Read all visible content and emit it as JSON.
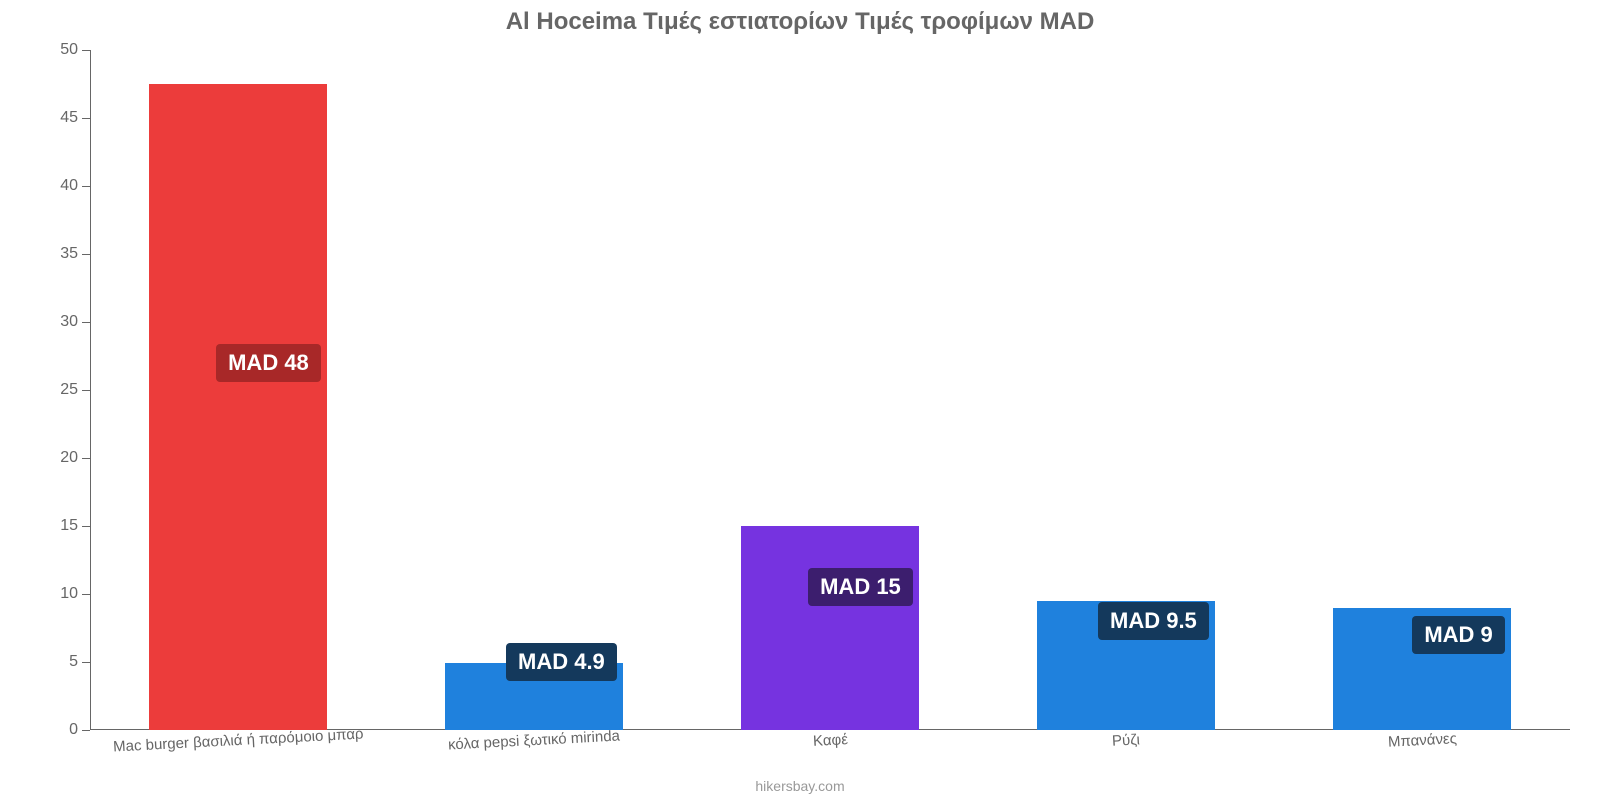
{
  "chart": {
    "type": "bar",
    "title": "Al Hoceima Τιμές εστιατορίων Τιμές τροφίμων MAD",
    "title_color": "#666666",
    "title_fontsize": 24,
    "background_color": "#ffffff",
    "axis_color": "#666666",
    "axis_label_fontsize": 16,
    "x_label_fontsize": 15,
    "x_label_rotation_deg": -3,
    "ylim": [
      0,
      50
    ],
    "ytick_step": 5,
    "yticks": [
      0,
      5,
      10,
      15,
      20,
      25,
      30,
      35,
      40,
      45,
      50
    ],
    "bar_width_pct": 60,
    "value_badge_fontsize": 22,
    "value_badge_text_color": "#ffffff",
    "categories": [
      "Mac burger βασιλιά ή παρόμοιο μπαρ",
      "κόλα pepsi ξωτικό mirinda",
      "Καφέ",
      "Ρύζι",
      "Μπανάνες"
    ],
    "values": [
      47.5,
      4.9,
      15,
      9.5,
      9
    ],
    "value_labels": [
      "MAD 48",
      "MAD 4.9",
      "MAD 15",
      "MAD 9.5",
      "MAD 9"
    ],
    "bar_colors": [
      "#ec3c3b",
      "#1f81dd",
      "#7633e0",
      "#1f81dd",
      "#1f81dd"
    ],
    "badge_colors": [
      "#a82828",
      "#14395c",
      "#3c1e6e",
      "#14395c",
      "#14395c"
    ],
    "badge_y_values": [
      27,
      5,
      10.5,
      8,
      7
    ],
    "credit": "hikersbay.com",
    "credit_color": "#999999",
    "credit_fontsize": 14
  }
}
